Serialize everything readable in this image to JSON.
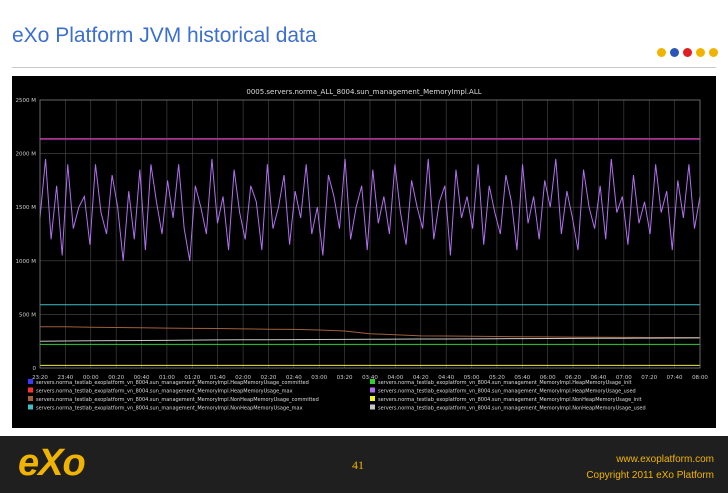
{
  "slide": {
    "title": "eXo Platform JVM historical data",
    "page_number": "41",
    "website": "www.exoplatform.com",
    "copyright": "Copyright 2011 eXo Platform",
    "logo_text": "eXo",
    "dot_colors": [
      "#f0b400",
      "#2a55b8",
      "#e02020",
      "#f0b400",
      "#f0b400"
    ]
  },
  "colors": {
    "chart_bg": "#000000",
    "grid": "#4a4a4a",
    "axis_text": "#cccccc",
    "footer_bg": "#1f1f1f",
    "accent": "#f0b400",
    "title": "#3d6fd0"
  },
  "chart_data": {
    "type": "line",
    "title": "0005.servers.norma_ALL_8004.sun_management_MemoryImpl.ALL",
    "xlabel": "",
    "ylabel": "",
    "ylim": [
      0,
      2500
    ],
    "yticks": [
      0,
      500,
      1000,
      1500,
      2000,
      2500
    ],
    "ytick_labels": [
      "0",
      "500 M",
      "1000 M",
      "1500 M",
      "2000 M",
      "2500 M"
    ],
    "xtick_labels": [
      "23:20",
      "23:40",
      "00:00",
      "00:20",
      "00:40",
      "01:00",
      "01:20",
      "01:40",
      "02:00",
      "02:20",
      "02:40",
      "03:00",
      "03:20",
      "03:40",
      "04:00",
      "04:20",
      "04:40",
      "05:00",
      "05:20",
      "05:40",
      "06:00",
      "06:20",
      "06:40",
      "07:00",
      "07:20",
      "07:40",
      "08:00"
    ],
    "grid": true,
    "legend_position": "bottom",
    "series": [
      {
        "name": "servers.norma_testlab_exoplatform_vn_8004.sun_management_MemoryImpl.HeapMemoryUsage_committed",
        "color": "#3a3aff",
        "values": [
          2130,
          2130,
          2130,
          2130,
          2130,
          2130,
          2130,
          2130,
          2130,
          2130,
          2130,
          2130,
          2130,
          2130,
          2130,
          2130,
          2130,
          2130,
          2130,
          2130,
          2130,
          2130,
          2130,
          2130,
          2130,
          2130,
          2130
        ]
      },
      {
        "name": "servers.norma_testlab_exoplatform_vn_8004.sun_management_MemoryImpl.HeapMemoryUsage_max",
        "color": "#ff3030",
        "values": [
          2140,
          2140,
          2140,
          2140,
          2140,
          2140,
          2140,
          2140,
          2140,
          2140,
          2140,
          2140,
          2140,
          2140,
          2140,
          2140,
          2140,
          2140,
          2140,
          2140,
          2140,
          2140,
          2140,
          2140,
          2140,
          2140,
          2140
        ]
      },
      {
        "name": "servers.norma_testlab_exoplatform_vn_8004.sun_management_MemoryImpl.NonHeapMemoryUsage_committed",
        "color": "#a0603a",
        "values": [
          385,
          385,
          380,
          378,
          375,
          372,
          370,
          368,
          365,
          362,
          360,
          355,
          345,
          320,
          310,
          300,
          298,
          296,
          294,
          292,
          290,
          288,
          287,
          286,
          285,
          284,
          283
        ]
      },
      {
        "name": "servers.norma_testlab_exoplatform_vn_8004.sun_management_MemoryImpl.NonHeapMemoryUsage_max",
        "color": "#3ec0c8",
        "values": [
          590,
          590,
          590,
          590,
          590,
          590,
          590,
          590,
          590,
          590,
          590,
          590,
          590,
          590,
          590,
          590,
          590,
          590,
          590,
          590,
          590,
          590,
          590,
          590,
          590,
          590,
          590
        ]
      },
      {
        "name": "servers.norma_testlab_exoplatform_vn_8004.sun_management_MemoryImpl.HeapMemoryUsage_init",
        "color": "#30d030",
        "values": [
          220,
          220,
          220,
          220,
          220,
          220,
          220,
          220,
          220,
          220,
          220,
          220,
          220,
          220,
          220,
          220,
          220,
          220,
          220,
          220,
          220,
          220,
          220,
          220,
          220,
          220,
          220
        ]
      },
      {
        "name": "servers.norma_testlab_exoplatform_vn_8004.sun_management_MemoryImpl.HeapMemoryUsage_used",
        "color": "#b070f0",
        "values": [
          1400,
          1950,
          1200,
          1700,
          1050,
          1900,
          1300,
          1500,
          1600,
          1150,
          1900,
          1450,
          1250,
          1800,
          1500,
          1000,
          1650,
          1200,
          1850,
          1100,
          1900,
          1550,
          1250,
          1750,
          1400,
          1900,
          1300,
          1000,
          1700,
          1500,
          1250,
          1950,
          1350,
          1600,
          1100,
          1850,
          1450,
          1200,
          1700,
          1550,
          1100,
          1900,
          1300,
          1500,
          1800,
          1150,
          1650,
          1400,
          1900,
          1250,
          1500,
          1050,
          1800,
          1600,
          1300,
          1950,
          1200,
          1500,
          1700,
          1100,
          1850,
          1350,
          1600,
          1250,
          1900,
          1450,
          1150,
          1750,
          1500,
          1300,
          1950,
          1200,
          1550,
          1700,
          1050,
          1850,
          1400,
          1600,
          1300,
          1900,
          1150,
          1700,
          1450,
          1250,
          1800,
          1550,
          1100,
          1900,
          1350,
          1600,
          1200,
          1750,
          1500,
          1950,
          1250,
          1650,
          1400,
          1100,
          1850,
          1500,
          1300,
          1700,
          1200,
          1950,
          1450,
          1600,
          1150,
          1800,
          1350,
          1550,
          1250,
          1900,
          1450,
          1650,
          1100,
          1750,
          1400,
          1900,
          1300,
          1600
        ]
      },
      {
        "name": "servers.norma_testlab_exoplatform_vn_8004.sun_management_MemoryImpl.NonHeapMemoryUsage_init",
        "color": "#f0f030",
        "values": [
          24,
          24,
          24,
          24,
          24,
          24,
          24,
          24,
          24,
          24,
          24,
          24,
          24,
          24,
          24,
          24,
          24,
          24,
          24,
          24,
          24,
          24,
          24,
          24,
          24,
          24,
          24
        ]
      },
      {
        "name": "servers.norma_testlab_exoplatform_vn_8004.sun_management_MemoryImpl.NonHeapMemoryUsage_used",
        "color": "#c8c8c8",
        "values": [
          250,
          252,
          254,
          255,
          256,
          258,
          260,
          262,
          263,
          264,
          265,
          266,
          267,
          268,
          269,
          270,
          271,
          272,
          273,
          274,
          275,
          276,
          277,
          278,
          279,
          280,
          281
        ]
      }
    ]
  }
}
